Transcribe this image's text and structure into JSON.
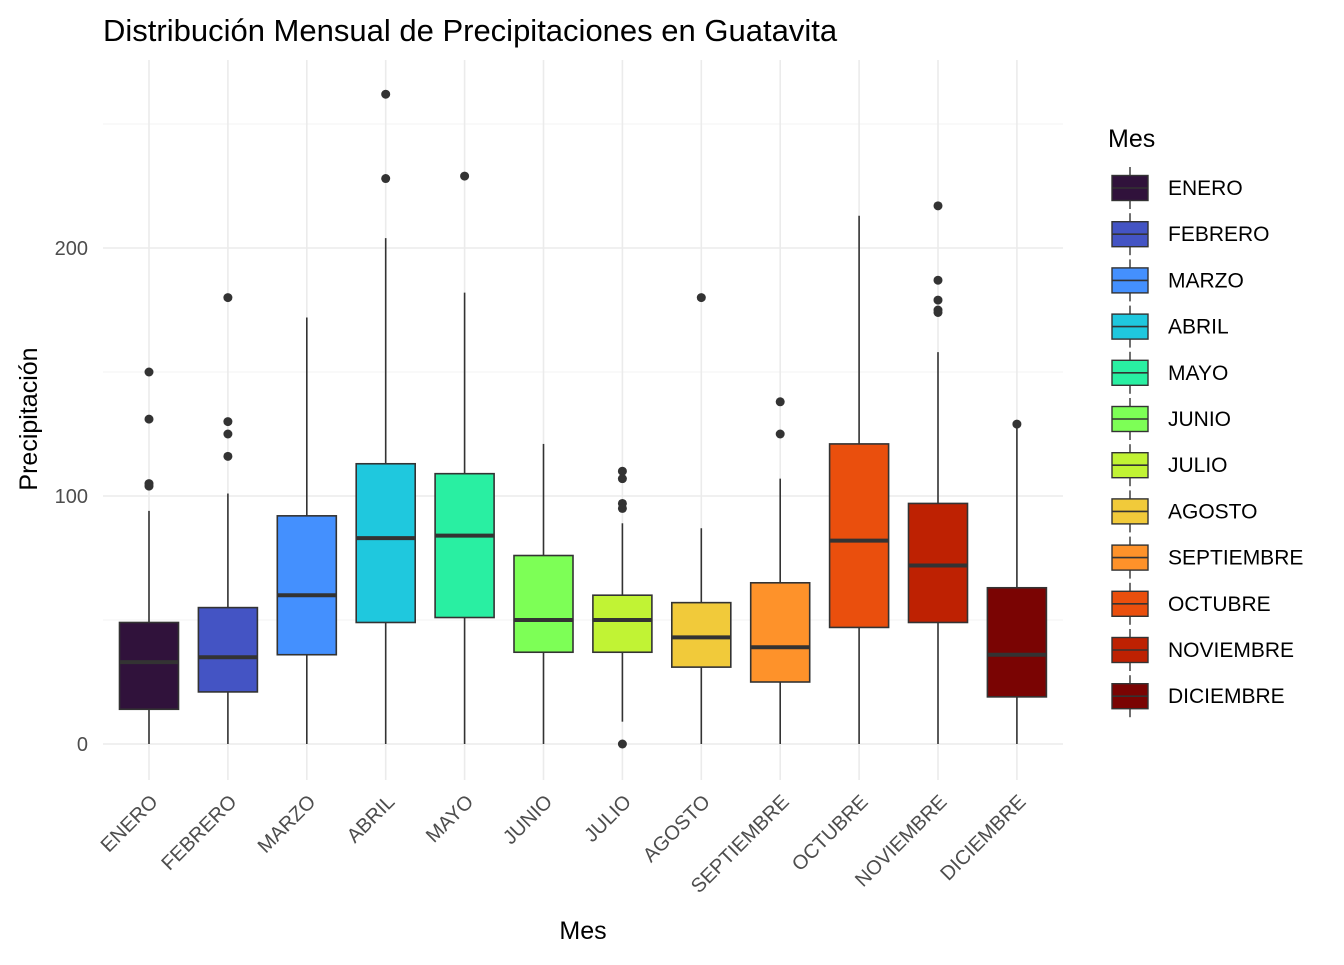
{
  "chart_data": {
    "type": "boxplot",
    "title": "Distribución Mensual de Precipitaciones en Guatavita",
    "xlabel": "Mes",
    "ylabel": "Precipitación",
    "ylim": [
      -15,
      275
    ],
    "yticks": [
      0,
      100,
      200
    ],
    "grid": true,
    "legend": {
      "title": "Mes",
      "position": "right"
    },
    "categories": [
      "ENERO",
      "FEBRERO",
      "MARZO",
      "ABRIL",
      "MAYO",
      "JUNIO",
      "JULIO",
      "AGOSTO",
      "SEPTIEMBRE",
      "OCTUBRE",
      "NOVIEMBRE",
      "DICIEMBRE"
    ],
    "boxes": [
      {
        "name": "ENERO",
        "color": "#30123B",
        "min": 0,
        "q1": 14,
        "median": 33,
        "q3": 49,
        "max": 94,
        "outliers": [
          150,
          131,
          105,
          104
        ]
      },
      {
        "name": "FEBRERO",
        "color": "#4454C4",
        "min": 0,
        "q1": 21,
        "median": 35,
        "q3": 55,
        "max": 101,
        "outliers": [
          180,
          130,
          125,
          116
        ]
      },
      {
        "name": "MARZO",
        "color": "#4490FE",
        "min": 0,
        "q1": 36,
        "median": 60,
        "q3": 92,
        "max": 172,
        "outliers": []
      },
      {
        "name": "ABRIL",
        "color": "#1FC8DE",
        "min": 0,
        "q1": 49,
        "median": 83,
        "q3": 113,
        "max": 204,
        "outliers": [
          262,
          228
        ]
      },
      {
        "name": "MAYO",
        "color": "#29EFA2",
        "min": 0,
        "q1": 51,
        "median": 84,
        "q3": 109,
        "max": 182,
        "outliers": [
          229
        ]
      },
      {
        "name": "JUNIO",
        "color": "#7DFF56",
        "min": 0,
        "q1": 37,
        "median": 50,
        "q3": 76,
        "max": 121,
        "outliers": []
      },
      {
        "name": "JULIO",
        "color": "#C1F334",
        "min": 9,
        "q1": 37,
        "median": 50,
        "q3": 60,
        "max": 89,
        "outliers": [
          110,
          107,
          97,
          95,
          0
        ]
      },
      {
        "name": "AGOSTO",
        "color": "#F1CA3A",
        "min": 0,
        "q1": 31,
        "median": 43,
        "q3": 57,
        "max": 87,
        "outliers": [
          180
        ]
      },
      {
        "name": "SEPTIEMBRE",
        "color": "#FE922A",
        "min": 0,
        "q1": 25,
        "median": 39,
        "q3": 65,
        "max": 107,
        "outliers": [
          138,
          125
        ]
      },
      {
        "name": "OCTUBRE",
        "color": "#EA4F0D",
        "min": 0,
        "q1": 47,
        "median": 82,
        "q3": 121,
        "max": 213,
        "outliers": []
      },
      {
        "name": "NOVIEMBRE",
        "color": "#BE2102",
        "min": 0,
        "q1": 49,
        "median": 72,
        "q3": 97,
        "max": 158,
        "outliers": [
          217,
          187,
          179,
          175,
          174
        ]
      },
      {
        "name": "DICIEMBRE",
        "color": "#7A0403",
        "min": 0,
        "q1": 19,
        "median": 36,
        "q3": 63,
        "max": 129,
        "outliers": [
          129
        ]
      }
    ]
  }
}
